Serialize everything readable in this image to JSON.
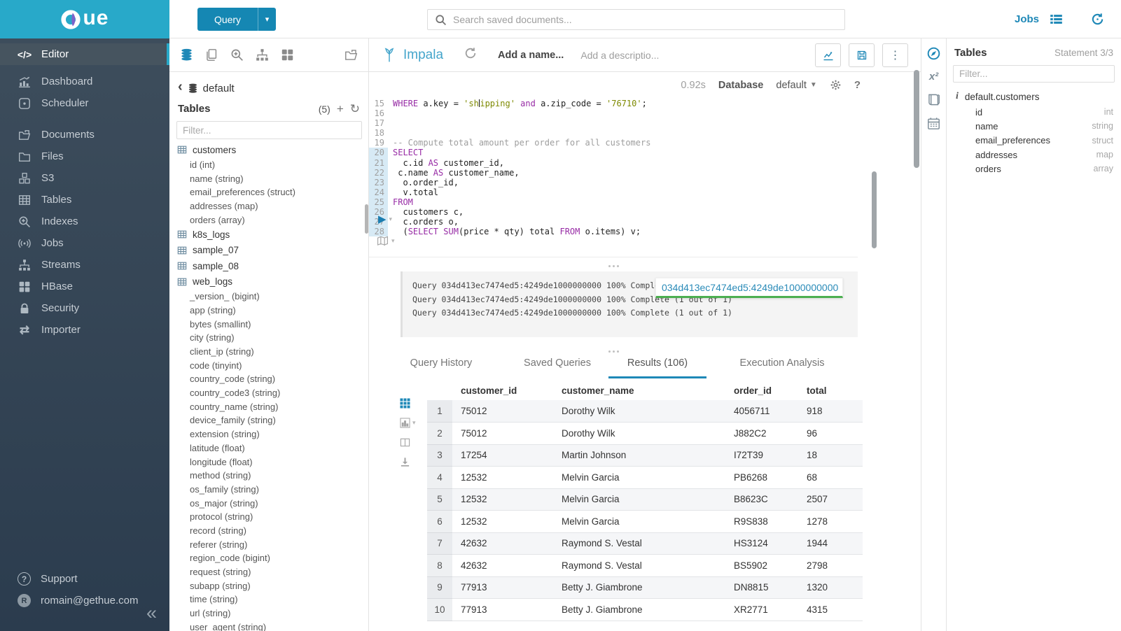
{
  "brand": {
    "name": "HUE",
    "wordmark_tail": "ue"
  },
  "colors": {
    "brand_cyan": "#28a9c9",
    "accent_blue": "#1e88b7",
    "sidebar_dark": "#31414f",
    "keyword_purple": "#972ba5",
    "string_olive": "#7d8900",
    "progress_green": "#4caf50"
  },
  "topnav": {
    "query_button": "Query",
    "search_placeholder": "Search saved documents...",
    "jobs_label": "Jobs"
  },
  "sidebar": {
    "items": [
      {
        "label": "Editor",
        "icon": "code",
        "active": true
      },
      {
        "label": "Dashboard",
        "icon": "dashboard"
      },
      {
        "label": "Scheduler",
        "icon": "scheduler"
      },
      {
        "label": "Documents",
        "icon": "documents"
      },
      {
        "label": "Files",
        "icon": "folder"
      },
      {
        "label": "S3",
        "icon": "cubes"
      },
      {
        "label": "Tables",
        "icon": "table-grid"
      },
      {
        "label": "Indexes",
        "icon": "zoom-plus"
      },
      {
        "label": "Jobs",
        "icon": "broadcast"
      },
      {
        "label": "Streams",
        "icon": "sitemap"
      },
      {
        "label": "HBase",
        "icon": "grid-2x2"
      },
      {
        "label": "Security",
        "icon": "lock"
      },
      {
        "label": "Importer",
        "icon": "swap"
      }
    ],
    "footer": {
      "support_label": "Support",
      "user_label": "romain@gethue.com",
      "avatar_letter": "R"
    },
    "collapse_glyph": "«"
  },
  "left_assist": {
    "database": "default",
    "tables_title": "Tables",
    "table_count": "(5)",
    "filter_placeholder": "Filter...",
    "tree": [
      {
        "name": "customers",
        "columns": [
          "id (int)",
          "name (string)",
          "email_preferences (struct)",
          "addresses (map)",
          "orders (array)"
        ]
      },
      {
        "name": "k8s_logs",
        "columns": []
      },
      {
        "name": "sample_07",
        "columns": []
      },
      {
        "name": "sample_08",
        "columns": []
      },
      {
        "name": "web_logs",
        "columns": [
          "_version_ (bigint)",
          "app (string)",
          "bytes (smallint)",
          "city (string)",
          "client_ip (string)",
          "code (tinyint)",
          "country_code (string)",
          "country_code3 (string)",
          "country_name (string)",
          "device_family (string)",
          "extension (string)",
          "latitude (float)",
          "longitude (float)",
          "method (string)",
          "os_family (string)",
          "os_major (string)",
          "protocol (string)",
          "record (string)",
          "referer (string)",
          "region_code (bigint)",
          "request (string)",
          "subapp (string)",
          "time (string)",
          "url (string)",
          "user_agent (string)"
        ]
      }
    ]
  },
  "editor": {
    "engine": "Impala",
    "name_placeholder": "Add a name...",
    "description_placeholder": "Add a descriptio...",
    "execution_time": "0.92s",
    "database_label": "Database",
    "database_value": "default",
    "code_lines": [
      {
        "n": 15,
        "hl": false,
        "seg": [
          [
            "kw",
            "WHERE"
          ],
          [
            "pl",
            " a.key = "
          ],
          [
            "str",
            "'sh"
          ],
          [
            "cur",
            ""
          ],
          [
            "str",
            "ipping'"
          ],
          [
            "pl",
            " "
          ],
          [
            "kw",
            "and"
          ],
          [
            "pl",
            " a.zip_code = "
          ],
          [
            "str",
            "'76710'"
          ],
          [
            "pl",
            ";"
          ]
        ]
      },
      {
        "n": 16,
        "hl": false,
        "seg": []
      },
      {
        "n": 17,
        "hl": false,
        "seg": []
      },
      {
        "n": 18,
        "hl": false,
        "seg": []
      },
      {
        "n": 19,
        "hl": false,
        "seg": [
          [
            "com",
            "-- Compute total amount per order for all customers"
          ]
        ]
      },
      {
        "n": 20,
        "hl": true,
        "seg": [
          [
            "kw",
            "SELECT"
          ]
        ]
      },
      {
        "n": 21,
        "hl": true,
        "seg": [
          [
            "pl",
            "  c.id "
          ],
          [
            "kw",
            "AS"
          ],
          [
            "pl",
            " customer_id,"
          ]
        ]
      },
      {
        "n": 22,
        "hl": true,
        "seg": [
          [
            "pl",
            " c.name "
          ],
          [
            "kw",
            "AS"
          ],
          [
            "pl",
            " customer_name,"
          ]
        ]
      },
      {
        "n": 23,
        "hl": true,
        "seg": [
          [
            "pl",
            "  o.order_id,"
          ]
        ]
      },
      {
        "n": 24,
        "hl": true,
        "seg": [
          [
            "pl",
            "  v.total"
          ]
        ]
      },
      {
        "n": 25,
        "hl": true,
        "seg": [
          [
            "kw",
            "FROM"
          ]
        ]
      },
      {
        "n": 26,
        "hl": true,
        "seg": [
          [
            "pl",
            "  customers c,"
          ]
        ]
      },
      {
        "n": 27,
        "hl": true,
        "seg": [
          [
            "pl",
            "  c.orders o,"
          ]
        ]
      },
      {
        "n": 28,
        "hl": true,
        "seg": [
          [
            "pl",
            "  ("
          ],
          [
            "kw",
            "SELECT"
          ],
          [
            "pl",
            " "
          ],
          [
            "kw",
            "SUM"
          ],
          [
            "pl",
            "(price * qty) total "
          ],
          [
            "kw",
            "FROM"
          ],
          [
            "pl",
            " o.items) v;"
          ]
        ]
      }
    ]
  },
  "log": {
    "lines": [
      "Query 034d413ec7474ed5:4249de1000000000 100% Complete (1 out of 1)",
      "Query 034d413ec7474ed5:4249de1000000000 100% Complete (1 out of 1)",
      "Query 034d413ec7474ed5:4249de1000000000 100% Complete (1 out of 1)"
    ],
    "popover_job_id": "034d413ec7474ed5:4249de1000000000"
  },
  "tabs": [
    {
      "label": "Query History",
      "active": false
    },
    {
      "label": "Saved Queries",
      "active": false
    },
    {
      "label": "Results (106)",
      "active": true
    },
    {
      "label": "Execution Analysis",
      "active": false
    }
  ],
  "results": {
    "columns": [
      "customer_id",
      "customer_name",
      "order_id",
      "total"
    ],
    "rows": [
      [
        "1",
        "75012",
        "Dorothy Wilk",
        "4056711",
        "918"
      ],
      [
        "2",
        "75012",
        "Dorothy Wilk",
        "J882C2",
        "96"
      ],
      [
        "3",
        "17254",
        "Martin Johnson",
        "I72T39",
        "18"
      ],
      [
        "4",
        "12532",
        "Melvin Garcia",
        "PB6268",
        "68"
      ],
      [
        "5",
        "12532",
        "Melvin Garcia",
        "B8623C",
        "2507"
      ],
      [
        "6",
        "12532",
        "Melvin Garcia",
        "R9S838",
        "1278"
      ],
      [
        "7",
        "42632",
        "Raymond S. Vestal",
        "HS3124",
        "1944"
      ],
      [
        "8",
        "42632",
        "Raymond S. Vestal",
        "BS5902",
        "2798"
      ],
      [
        "9",
        "77913",
        "Betty J. Giambrone",
        "DN8815",
        "1320"
      ],
      [
        "10",
        "77913",
        "Betty J. Giambrone",
        "XR2771",
        "4315"
      ]
    ]
  },
  "right_assist": {
    "title": "Tables",
    "statement": "Statement 3/3",
    "filter_placeholder": "Filter...",
    "table_name": "default.customers",
    "columns": [
      {
        "name": "id",
        "type": "int"
      },
      {
        "name": "name",
        "type": "string"
      },
      {
        "name": "email_preferences",
        "type": "struct"
      },
      {
        "name": "addresses",
        "type": "map"
      },
      {
        "name": "orders",
        "type": "array"
      }
    ]
  }
}
